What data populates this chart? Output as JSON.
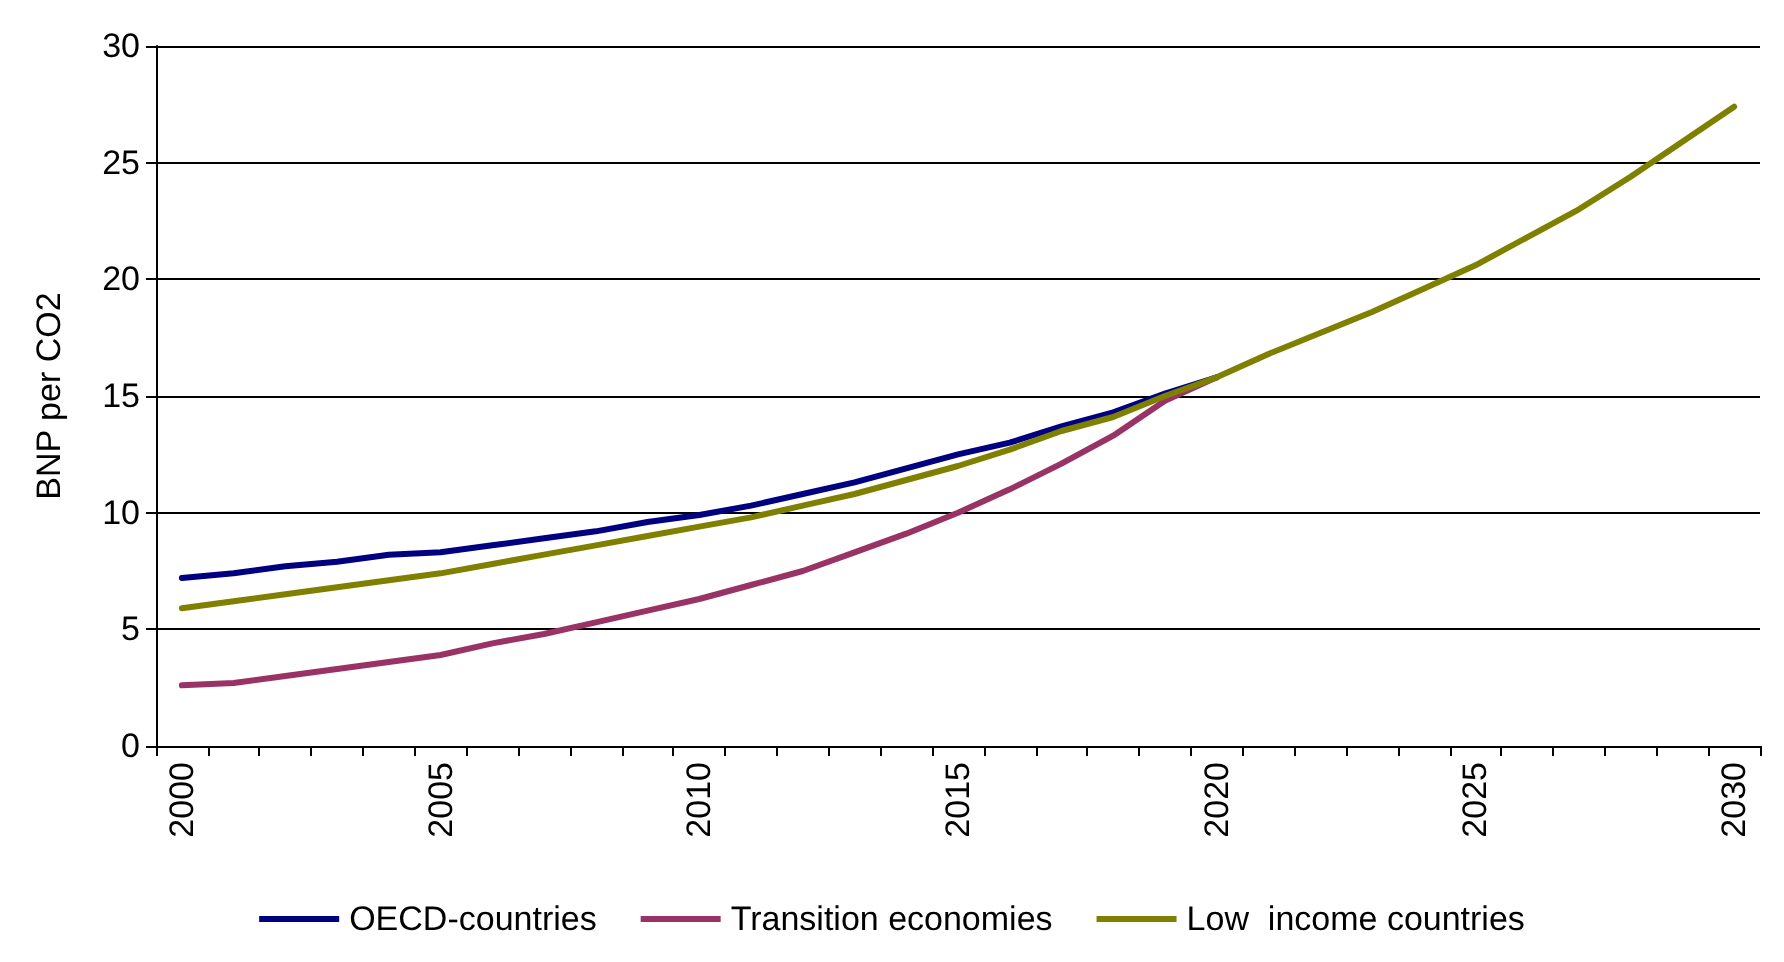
{
  "chart_data": {
    "type": "line",
    "ylabel": "BNP per CO2",
    "categories": [
      "2000",
      null,
      null,
      null,
      null,
      "2005",
      null,
      null,
      null,
      null,
      "2010",
      null,
      null,
      null,
      null,
      "2015",
      null,
      null,
      null,
      null,
      "2020",
      null,
      null,
      null,
      null,
      "2025",
      null,
      null,
      null,
      null,
      "2030"
    ],
    "series": [
      {
        "name": "OECD-countries",
        "color": "#000080",
        "values": [
          7.2,
          7.4,
          7.7,
          7.9,
          8.2,
          8.3,
          8.6,
          8.9,
          9.2,
          9.6,
          9.9,
          10.3,
          10.8,
          11.3,
          11.9,
          12.5,
          13.0,
          13.7,
          14.3,
          15.1,
          15.8,
          null,
          null,
          null,
          null,
          null,
          null,
          null,
          null,
          null,
          null
        ]
      },
      {
        "name": "Transition economies",
        "color": "#993366",
        "values": [
          2.6,
          2.7,
          3.0,
          3.3,
          3.6,
          3.9,
          4.4,
          4.8,
          5.3,
          5.8,
          6.3,
          6.9,
          7.5,
          8.3,
          9.1,
          10.0,
          11.0,
          12.1,
          13.3,
          14.8,
          15.8,
          null,
          null,
          null,
          null,
          null,
          null,
          null,
          null,
          null,
          null
        ]
      },
      {
        "name": "Low  income countries",
        "color": "#808000",
        "values": [
          5.9,
          6.2,
          6.5,
          6.8,
          7.1,
          7.4,
          7.8,
          8.2,
          8.6,
          9.0,
          9.4,
          9.8,
          10.3,
          10.8,
          11.4,
          12.0,
          12.7,
          13.5,
          14.1,
          15.0,
          15.8,
          16.8,
          17.7,
          18.6,
          19.6,
          20.6,
          21.8,
          23.0,
          24.4,
          25.9,
          27.4
        ]
      }
    ],
    "ylim": [
      0,
      30
    ],
    "yticks": [
      0,
      5,
      10,
      15,
      20,
      25,
      30
    ],
    "grid": "y",
    "legend": "bottom",
    "marker": "none",
    "line_style": "solid"
  }
}
